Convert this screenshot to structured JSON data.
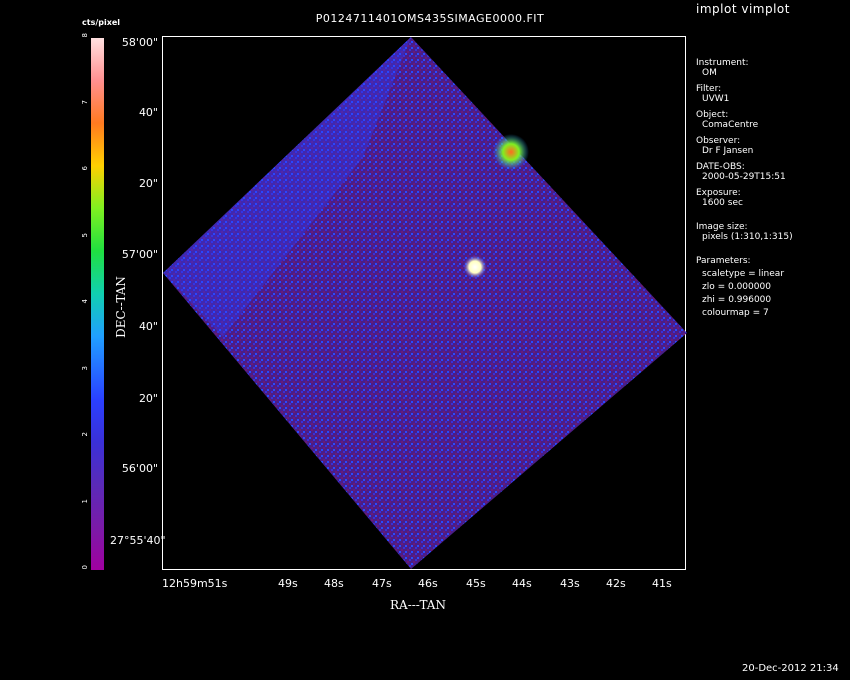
{
  "app_title": "implot vimplot",
  "plot_title": "P0124711401OMS435SIMAGE0000.FIT",
  "colorbar": {
    "label": "cts/pixel",
    "ticks": [
      "0",
      "1",
      "2",
      "3",
      "4",
      "5",
      "6",
      "7",
      "8"
    ]
  },
  "axes": {
    "xlabel": "RA---TAN",
    "ylabel": "DEC--TAN",
    "xticks": [
      "12h59m51s",
      "49s",
      "48s",
      "47s",
      "46s",
      "45s",
      "44s",
      "43s",
      "42s",
      "41s"
    ],
    "yticks": [
      "58'00\"",
      "40\"",
      "20\"",
      "57'00\"",
      "40\"",
      "20\"",
      "56'00\"",
      "27°55'40\""
    ]
  },
  "meta": {
    "instrument_label": "Instrument:",
    "instrument": "OM",
    "filter_label": "Filter:",
    "filter": "UVW1",
    "object_label": "Object:",
    "object": "ComaCentre",
    "observer_label": "Observer:",
    "observer": "Dr F Jansen",
    "date_label": "DATE-OBS:",
    "date": "2000-05-29T15:51",
    "exposure_label": "Exposure:",
    "exposure": "1600 sec",
    "size_label": "Image size:",
    "size": "pixels (1:310,1:315)",
    "params_label": "Parameters:",
    "scaletype": "scaletype = linear",
    "zlo": "zlo = 0.000000",
    "zhi": "zhi = 0.996000",
    "colourmap": "colourmap =   7"
  },
  "footer_date": "20-Dec-2012 21:34",
  "colors": {
    "background": "#000000",
    "frame": "#ffffff",
    "image_base": "#4a1e8a"
  }
}
